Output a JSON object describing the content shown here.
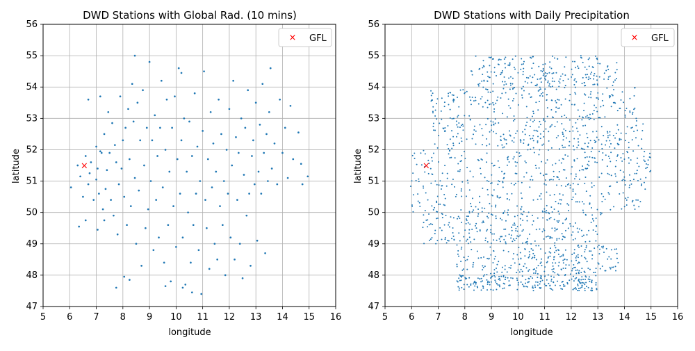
{
  "chart_data": [
    {
      "type": "scatter",
      "title": "DWD Stations with Global Rad. (10 mins)",
      "xlabel": "longitude",
      "ylabel": "latitude",
      "xlim": [
        5,
        16
      ],
      "ylim": [
        47,
        56
      ],
      "xticks": [
        "5",
        "6",
        "7",
        "8",
        "9",
        "10",
        "11",
        "12",
        "13",
        "14",
        "15",
        "16"
      ],
      "yticks": [
        "47",
        "48",
        "49",
        "50",
        "51",
        "52",
        "53",
        "54",
        "55",
        "56"
      ],
      "grid": true,
      "legend": {
        "position": "top-right",
        "entries": [
          "GFL"
        ]
      },
      "colors": {
        "stations": "#1f77b4",
        "gfl": "#ff0000"
      },
      "marker_point": {
        "label": "GFL",
        "x": 6.55,
        "y": 51.49
      },
      "series": [
        {
          "values": [
            [
              6.05,
              50.8
            ],
            [
              6.3,
              51.5
            ],
            [
              6.4,
              51.15
            ],
            [
              6.5,
              50.5
            ],
            [
              6.6,
              51.8
            ],
            [
              6.7,
              50.9
            ],
            [
              6.7,
              53.6
            ],
            [
              6.75,
              51.25
            ],
            [
              6.8,
              51.6
            ],
            [
              6.9,
              50.4
            ],
            [
              7.0,
              51.05
            ],
            [
              7.0,
              52.1
            ],
            [
              7.05,
              51.4
            ],
            [
              7.1,
              50.6
            ],
            [
              7.15,
              53.7
            ],
            [
              7.2,
              51.9
            ],
            [
              7.25,
              50.1
            ],
            [
              7.3,
              52.5
            ],
            [
              7.35,
              50.75
            ],
            [
              7.4,
              51.35
            ],
            [
              7.45,
              53.2
            ],
            [
              7.5,
              51.9
            ],
            [
              7.55,
              50.4
            ],
            [
              7.6,
              52.85
            ],
            [
              7.65,
              49.9
            ],
            [
              7.7,
              52.15
            ],
            [
              7.75,
              51.6
            ],
            [
              7.8,
              49.3
            ],
            [
              7.85,
              50.9
            ],
            [
              7.9,
              53.7
            ],
            [
              7.95,
              51.4
            ],
            [
              8.0,
              52.3
            ],
            [
              8.05,
              50.5
            ],
            [
              8.1,
              52.7
            ],
            [
              8.15,
              49.6
            ],
            [
              8.2,
              53.3
            ],
            [
              8.25,
              51.7
            ],
            [
              8.3,
              50.2
            ],
            [
              8.35,
              54.1
            ],
            [
              8.4,
              52.9
            ],
            [
              8.45,
              51.1
            ],
            [
              8.5,
              49.0
            ],
            [
              8.55,
              53.5
            ],
            [
              8.6,
              50.7
            ],
            [
              8.65,
              52.3
            ],
            [
              8.7,
              48.3
            ],
            [
              8.75,
              53.9
            ],
            [
              8.8,
              51.5
            ],
            [
              8.85,
              49.5
            ],
            [
              8.9,
              52.7
            ],
            [
              8.95,
              50.1
            ],
            [
              9.0,
              54.8
            ],
            [
              9.05,
              51.0
            ],
            [
              9.1,
              52.3
            ],
            [
              9.15,
              48.8
            ],
            [
              9.2,
              53.1
            ],
            [
              9.25,
              50.4
            ],
            [
              9.3,
              51.8
            ],
            [
              9.35,
              49.2
            ],
            [
              9.4,
              52.7
            ],
            [
              9.45,
              54.2
            ],
            [
              9.5,
              50.8
            ],
            [
              9.55,
              48.4
            ],
            [
              9.6,
              52.0
            ],
            [
              9.65,
              53.6
            ],
            [
              9.7,
              49.6
            ],
            [
              9.75,
              51.3
            ],
            [
              9.8,
              47.8
            ],
            [
              9.85,
              52.7
            ],
            [
              9.9,
              50.2
            ],
            [
              9.95,
              53.7
            ],
            [
              10.0,
              48.9
            ],
            [
              10.05,
              51.7
            ],
            [
              10.1,
              54.6
            ],
            [
              10.15,
              50.6
            ],
            [
              10.2,
              52.3
            ],
            [
              10.25,
              49.2
            ],
            [
              10.3,
              53.0
            ],
            [
              10.35,
              47.7
            ],
            [
              10.4,
              51.3
            ],
            [
              10.45,
              50.0
            ],
            [
              10.5,
              52.9
            ],
            [
              10.55,
              48.4
            ],
            [
              10.6,
              51.8
            ],
            [
              10.65,
              49.6
            ],
            [
              10.7,
              53.8
            ],
            [
              10.75,
              50.6
            ],
            [
              10.8,
              52.1
            ],
            [
              10.85,
              48.8
            ],
            [
              10.9,
              51.0
            ],
            [
              10.95,
              47.4
            ],
            [
              11.0,
              52.6
            ],
            [
              11.05,
              54.5
            ],
            [
              11.1,
              50.4
            ],
            [
              11.15,
              49.5
            ],
            [
              11.2,
              51.7
            ],
            [
              11.25,
              48.2
            ],
            [
              11.3,
              53.2
            ],
            [
              11.35,
              50.8
            ],
            [
              11.4,
              52.2
            ],
            [
              11.45,
              49.0
            ],
            [
              11.5,
              51.3
            ],
            [
              11.55,
              48.5
            ],
            [
              11.6,
              53.6
            ],
            [
              11.65,
              50.2
            ],
            [
              11.7,
              52.5
            ],
            [
              11.75,
              49.6
            ],
            [
              11.8,
              51.0
            ],
            [
              11.85,
              48.0
            ],
            [
              11.9,
              52.0
            ],
            [
              11.95,
              50.6
            ],
            [
              12.0,
              53.3
            ],
            [
              12.05,
              49.2
            ],
            [
              12.1,
              51.5
            ],
            [
              12.15,
              54.2
            ],
            [
              12.2,
              48.5
            ],
            [
              12.25,
              52.4
            ],
            [
              12.3,
              50.4
            ],
            [
              12.35,
              51.9
            ],
            [
              12.4,
              49.0
            ],
            [
              12.45,
              53.0
            ],
            [
              12.5,
              47.9
            ],
            [
              12.55,
              51.2
            ],
            [
              12.6,
              52.7
            ],
            [
              12.65,
              49.9
            ],
            [
              12.7,
              53.9
            ],
            [
              12.75,
              50.6
            ],
            [
              12.8,
              48.3
            ],
            [
              12.85,
              51.8
            ],
            [
              12.9,
              52.3
            ],
            [
              12.95,
              50.9
            ],
            [
              13.0,
              53.5
            ],
            [
              13.05,
              49.1
            ],
            [
              13.1,
              51.3
            ],
            [
              13.15,
              52.8
            ],
            [
              13.2,
              50.6
            ],
            [
              13.25,
              54.1
            ],
            [
              13.3,
              51.9
            ],
            [
              13.35,
              48.7
            ],
            [
              13.4,
              52.5
            ],
            [
              13.45,
              51.0
            ],
            [
              13.5,
              53.2
            ],
            [
              13.55,
              54.6
            ],
            [
              13.6,
              51.4
            ],
            [
              13.7,
              52.2
            ],
            [
              13.8,
              50.9
            ],
            [
              13.9,
              53.6
            ],
            [
              14.0,
              51.9
            ],
            [
              14.1,
              52.7
            ],
            [
              14.2,
              51.1
            ],
            [
              14.3,
              53.4
            ],
            [
              14.4,
              51.7
            ],
            [
              14.6,
              52.55
            ],
            [
              14.7,
              51.55
            ],
            [
              14.75,
              50.9
            ],
            [
              14.95,
              51.15
            ],
            [
              8.45,
              55.0
            ],
            [
              10.2,
              54.45
            ],
            [
              7.15,
              51.95
            ],
            [
              6.35,
              49.55
            ],
            [
              6.6,
              49.75
            ],
            [
              7.05,
              49.45
            ],
            [
              7.3,
              49.75
            ],
            [
              7.75,
              47.6
            ],
            [
              8.05,
              47.95
            ],
            [
              8.25,
              47.85
            ],
            [
              9.6,
              47.65
            ],
            [
              10.25,
              47.6
            ],
            [
              10.6,
              47.45
            ]
          ]
        }
      ]
    },
    {
      "type": "scatter",
      "title": "DWD Stations with Daily Precipitation",
      "xlabel": "longitude",
      "ylabel": "latitude",
      "xlim": [
        5,
        16
      ],
      "ylim": [
        47,
        56
      ],
      "xticks": [
        "5",
        "6",
        "7",
        "8",
        "9",
        "10",
        "11",
        "12",
        "13",
        "14",
        "15",
        "16"
      ],
      "yticks": [
        "47",
        "48",
        "49",
        "50",
        "51",
        "52",
        "53",
        "54",
        "55",
        "56"
      ],
      "grid": true,
      "legend": {
        "position": "top-right",
        "entries": [
          "GFL"
        ]
      },
      "colors": {
        "stations": "#1f77b4",
        "gfl": "#ff0000"
      },
      "marker_point": {
        "label": "GFL",
        "x": 6.55,
        "y": 51.49
      },
      "series": [
        {
          "generated_count": 1800,
          "density_region_lat_lon": [
            [
              47.5,
              48.0,
              7.7,
              13.0
            ],
            [
              48.0,
              49.0,
              7.7,
              13.8
            ],
            [
              49.0,
              50.0,
              6.4,
              13.2
            ],
            [
              50.0,
              51.0,
              5.9,
              14.8
            ],
            [
              51.0,
              52.0,
              6.0,
              15.0
            ],
            [
              52.0,
              53.0,
              6.8,
              14.7
            ],
            [
              53.0,
              54.0,
              6.7,
              14.4
            ],
            [
              54.0,
              55.0,
              8.2,
              13.8
            ]
          ]
        }
      ]
    }
  ]
}
